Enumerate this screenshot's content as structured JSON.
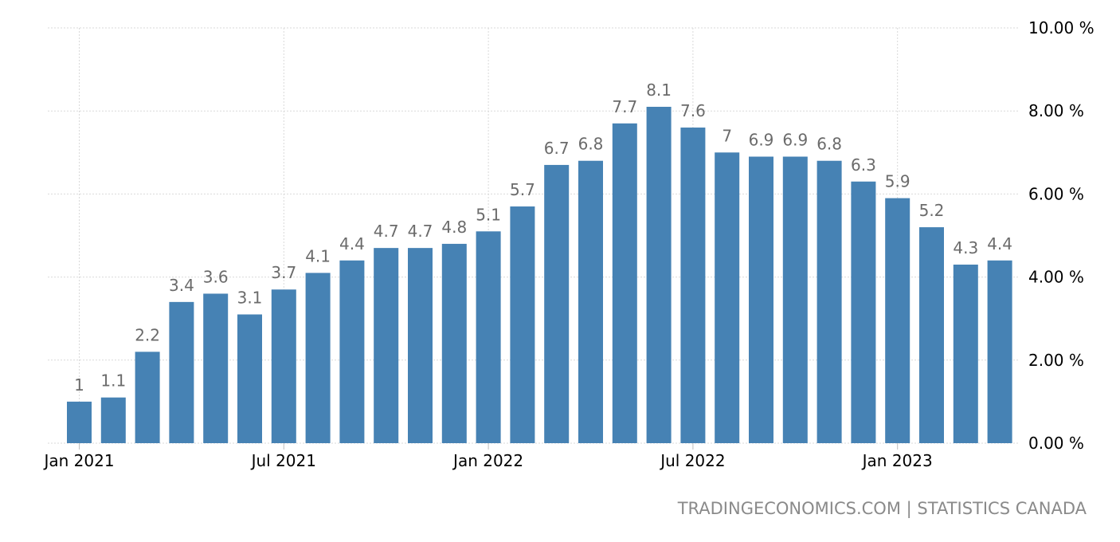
{
  "chart_data": {
    "type": "bar",
    "title": "",
    "xlabel": "",
    "ylabel": "",
    "categories": [
      "Jan 2021",
      "Feb 2021",
      "Mar 2021",
      "Apr 2021",
      "May 2021",
      "Jun 2021",
      "Jul 2021",
      "Aug 2021",
      "Sep 2021",
      "Oct 2021",
      "Nov 2021",
      "Dec 2021",
      "Jan 2022",
      "Feb 2022",
      "Mar 2022",
      "Apr 2022",
      "May 2022",
      "Jun 2022",
      "Jul 2022",
      "Aug 2022",
      "Sep 2022",
      "Oct 2022",
      "Nov 2022",
      "Dec 2022",
      "Jan 2023",
      "Feb 2023",
      "Mar 2023",
      "Apr 2023"
    ],
    "values": [
      1,
      1.1,
      2.2,
      3.4,
      3.6,
      3.1,
      3.7,
      4.1,
      4.4,
      4.7,
      4.7,
      4.8,
      5.1,
      5.7,
      6.7,
      6.8,
      7.7,
      8.1,
      7.6,
      7,
      6.9,
      6.9,
      6.8,
      6.3,
      5.9,
      5.2,
      4.3,
      4.4
    ],
    "data_labels": [
      "1",
      "1.1",
      "2.2",
      "3.4",
      "3.6",
      "3.1",
      "3.7",
      "4.1",
      "4.4",
      "4.7",
      "4.7",
      "4.8",
      "5.1",
      "5.7",
      "6.7",
      "6.8",
      "7.7",
      "8.1",
      "7.6",
      "7",
      "6.9",
      "6.9",
      "6.8",
      "6.3",
      "5.9",
      "5.2",
      "4.3",
      "4.4"
    ],
    "ylim": [
      0,
      10
    ],
    "y_ticks": [
      {
        "value": 0,
        "label": "0.00 %"
      },
      {
        "value": 2,
        "label": "2.00 %"
      },
      {
        "value": 4,
        "label": "4.00 %"
      },
      {
        "value": 6,
        "label": "6.00 %"
      },
      {
        "value": 8,
        "label": "8.00 %"
      },
      {
        "value": 10,
        "label": "10.00 %"
      }
    ],
    "x_ticks": [
      {
        "index": 0,
        "label": "Jan 2021"
      },
      {
        "index": 6,
        "label": "Jul 2021"
      },
      {
        "index": 12,
        "label": "Jan 2022"
      },
      {
        "index": 18,
        "label": "Jul 2022"
      },
      {
        "index": 24,
        "label": "Jan 2023"
      }
    ],
    "y_axis_position": "right",
    "grid": true,
    "legend": "none",
    "colors": {
      "bar": "#4682b4",
      "grid": "#d9d9d9",
      "data_label": "#6b6b6b",
      "tick_label": "#000000"
    }
  },
  "footer": {
    "source_left": "TRADINGECONOMICS.COM",
    "separator": "|",
    "source_right": "STATISTICS CANADA",
    "color": "#8a8a8a"
  }
}
